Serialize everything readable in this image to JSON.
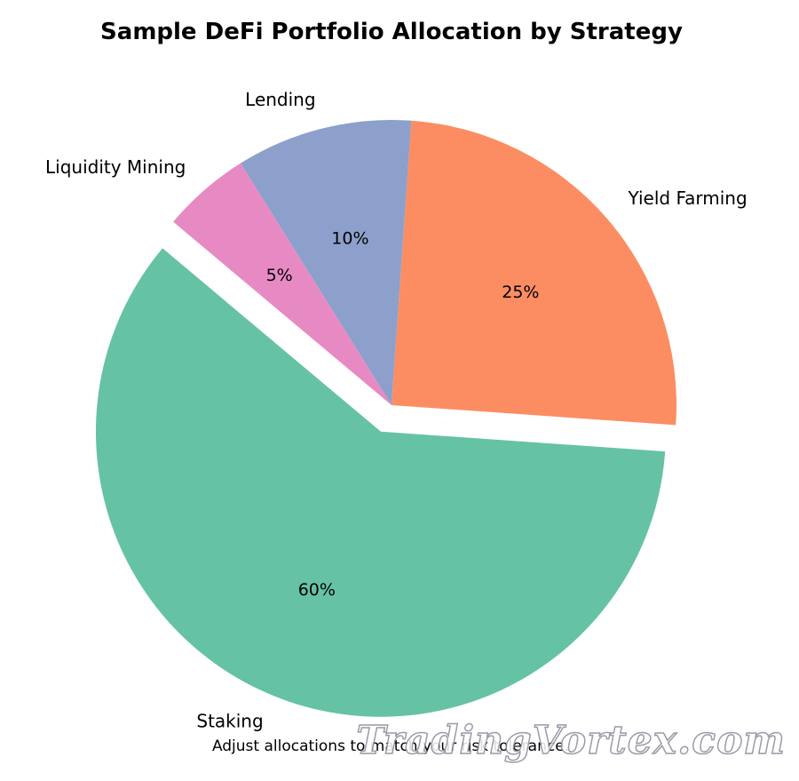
{
  "chart_data": {
    "type": "pie",
    "title": "Sample DeFi Portfolio Allocation by Strategy",
    "caption": "Adjust allocations to match your risk tolerance.",
    "slices": [
      {
        "label": "Staking",
        "value": 60,
        "percent_label": "60%",
        "color": "#66c2a5",
        "exploded": true
      },
      {
        "label": "Yield Farming",
        "value": 25,
        "percent_label": "25%",
        "color": "#fc8d62",
        "exploded": false
      },
      {
        "label": "Lending",
        "value": 10,
        "percent_label": "10%",
        "color": "#8da0cb",
        "exploded": false
      },
      {
        "label": "Liquidity Mining",
        "value": 5,
        "percent_label": "5%",
        "color": "#e78ac3",
        "exploded": false
      }
    ],
    "start_angle_deg": 140,
    "direction": "counterclockwise",
    "legend": "none"
  },
  "watermark": {
    "text": "TradingVortex.com"
  }
}
